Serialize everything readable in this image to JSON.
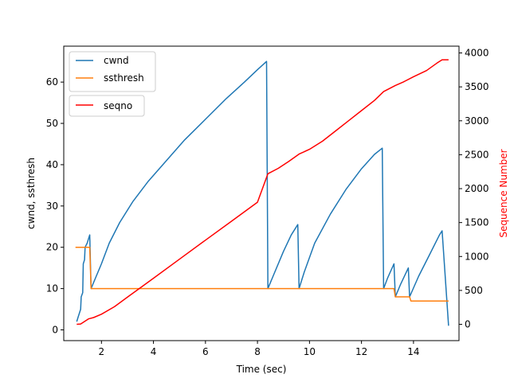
{
  "chart_data": {
    "type": "line",
    "title": "",
    "xlabel": "Time (sec)",
    "ylabel_left": "cwnd, ssthresh",
    "ylabel_right": "Sequence Number",
    "xlim": [
      0.55,
      15.75
    ],
    "ylim_left": [
      -2.6,
      68.7
    ],
    "ylim_right": [
      -240,
      4100
    ],
    "x_ticks": [
      2,
      4,
      6,
      8,
      10,
      12,
      14
    ],
    "y_ticks_left": [
      0,
      10,
      20,
      30,
      40,
      50,
      60
    ],
    "y_ticks_right": [
      0,
      500,
      1000,
      1500,
      2000,
      2500,
      3000,
      3500,
      4000
    ],
    "legend_placement": "top-left",
    "grid": false,
    "colors": {
      "cwnd": "#1f77b4",
      "ssthresh": "#ff7f0e",
      "seqno": "#ff0000",
      "right_axis_label": "#ff0000"
    },
    "series": [
      {
        "name": "cwnd",
        "axis": "left",
        "points": [
          [
            1.05,
            2
          ],
          [
            1.1,
            3
          ],
          [
            1.2,
            5
          ],
          [
            1.22,
            8
          ],
          [
            1.28,
            9
          ],
          [
            1.3,
            16
          ],
          [
            1.35,
            17
          ],
          [
            1.37,
            20
          ],
          [
            1.45,
            21
          ],
          [
            1.5,
            22
          ],
          [
            1.55,
            23
          ],
          [
            1.6,
            10
          ],
          [
            1.8,
            13
          ],
          [
            2.0,
            16
          ],
          [
            2.3,
            21
          ],
          [
            2.7,
            26
          ],
          [
            3.2,
            31
          ],
          [
            3.8,
            36
          ],
          [
            4.5,
            41
          ],
          [
            5.2,
            46
          ],
          [
            6.0,
            51
          ],
          [
            6.8,
            56
          ],
          [
            7.5,
            60
          ],
          [
            8.0,
            63
          ],
          [
            8.35,
            65
          ],
          [
            8.4,
            10
          ],
          [
            8.6,
            13
          ],
          [
            9.0,
            19
          ],
          [
            9.3,
            23
          ],
          [
            9.55,
            25.5
          ],
          [
            9.6,
            10
          ],
          [
            9.8,
            14
          ],
          [
            10.2,
            21
          ],
          [
            10.8,
            28
          ],
          [
            11.4,
            34
          ],
          [
            12.0,
            39
          ],
          [
            12.5,
            42.5
          ],
          [
            12.8,
            44
          ],
          [
            12.85,
            10
          ],
          [
            13.0,
            12.5
          ],
          [
            13.25,
            16
          ],
          [
            13.3,
            8
          ],
          [
            13.5,
            11
          ],
          [
            13.8,
            15
          ],
          [
            13.85,
            8
          ],
          [
            14.2,
            13
          ],
          [
            14.6,
            18
          ],
          [
            15.0,
            23
          ],
          [
            15.1,
            24
          ],
          [
            15.35,
            1
          ]
        ]
      },
      {
        "name": "ssthresh",
        "axis": "left",
        "points": [
          [
            1.0,
            20
          ],
          [
            1.55,
            20
          ],
          [
            1.6,
            10
          ],
          [
            13.25,
            10
          ],
          [
            13.3,
            8
          ],
          [
            13.85,
            8
          ],
          [
            13.9,
            7
          ],
          [
            15.35,
            7
          ]
        ]
      },
      {
        "name": "seqno",
        "axis": "right",
        "points": [
          [
            1.05,
            0
          ],
          [
            1.2,
            5
          ],
          [
            1.3,
            30
          ],
          [
            1.5,
            80
          ],
          [
            1.7,
            100
          ],
          [
            2.0,
            150
          ],
          [
            2.5,
            260
          ],
          [
            3.0,
            400
          ],
          [
            3.5,
            540
          ],
          [
            4.0,
            680
          ],
          [
            5.0,
            960
          ],
          [
            6.0,
            1240
          ],
          [
            7.0,
            1520
          ],
          [
            8.0,
            1800
          ],
          [
            8.4,
            2220
          ],
          [
            8.8,
            2300
          ],
          [
            9.2,
            2400
          ],
          [
            9.6,
            2510
          ],
          [
            10.0,
            2580
          ],
          [
            10.5,
            2700
          ],
          [
            11.0,
            2850
          ],
          [
            11.5,
            3000
          ],
          [
            12.0,
            3150
          ],
          [
            12.5,
            3300
          ],
          [
            12.85,
            3430
          ],
          [
            13.3,
            3520
          ],
          [
            13.6,
            3570
          ],
          [
            14.0,
            3650
          ],
          [
            14.5,
            3740
          ],
          [
            14.9,
            3850
          ],
          [
            15.1,
            3900
          ],
          [
            15.35,
            3900
          ]
        ]
      }
    ]
  }
}
